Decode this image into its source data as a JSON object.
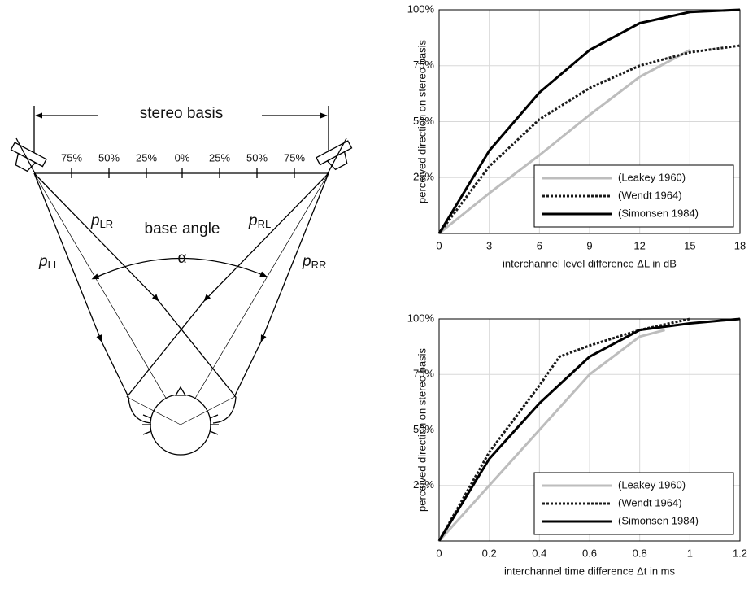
{
  "diagram": {
    "title": "stereo basis",
    "scale_labels": [
      "75%",
      "50%",
      "25%",
      "0%",
      "25%",
      "50%",
      "75%"
    ],
    "angle_label": "base angle",
    "angle_symbol": "α",
    "paths": [
      {
        "symbol": "p",
        "subscript": "LL"
      },
      {
        "symbol": "p",
        "subscript": "LR"
      },
      {
        "symbol": "p",
        "subscript": "RL"
      },
      {
        "symbol": "p",
        "subscript": "RR"
      }
    ]
  },
  "chart_data": [
    {
      "type": "line",
      "xlabel": "interchannel level difference ΔL in dB",
      "ylabel": "perceived direction on stereo basis",
      "xlim": [
        0,
        18
      ],
      "xticks": [
        0,
        3,
        6,
        9,
        12,
        15,
        18
      ],
      "ylim": [
        0,
        100
      ],
      "yticks": [
        {
          "value": 25,
          "label": "25%"
        },
        {
          "value": 50,
          "label": "50%"
        },
        {
          "value": 75,
          "label": "75%"
        },
        {
          "value": 100,
          "label": "100%"
        }
      ],
      "grid": true,
      "legend": "lower right",
      "series": [
        {
          "name": "(Leakey 1960)",
          "color": "#bdbdbd",
          "style": "solid",
          "x": [
            0,
            3,
            6,
            9,
            12,
            15
          ],
          "values": [
            0,
            18,
            35,
            53,
            70,
            82
          ]
        },
        {
          "name": "(Wendt 1964)",
          "color": "#1a1a1a",
          "style": "dotted",
          "x": [
            0,
            3,
            6,
            9,
            12,
            15,
            18
          ],
          "values": [
            0,
            30,
            51,
            65,
            75,
            81,
            84
          ]
        },
        {
          "name": "(Simonsen 1984)",
          "color": "#000000",
          "style": "solid",
          "x": [
            0,
            3,
            6,
            9,
            12,
            15,
            18
          ],
          "values": [
            0,
            37,
            63,
            82,
            94,
            99,
            100
          ]
        }
      ]
    },
    {
      "type": "line",
      "xlabel": "interchannel time difference Δt in ms",
      "ylabel": "perceived direction on stereo basis",
      "xlim": [
        0,
        1.2
      ],
      "xticks": [
        0,
        0.2,
        0.4,
        0.6,
        0.8,
        1,
        1.2
      ],
      "ylim": [
        0,
        100
      ],
      "yticks": [
        {
          "value": 25,
          "label": "25%"
        },
        {
          "value": 50,
          "label": "50%"
        },
        {
          "value": 75,
          "label": "75%"
        },
        {
          "value": 100,
          "label": "100%"
        }
      ],
      "grid": true,
      "legend": "lower right",
      "series": [
        {
          "name": "(Leakey 1960)",
          "color": "#bdbdbd",
          "style": "solid",
          "x": [
            0,
            0.2,
            0.4,
            0.6,
            0.8,
            0.9
          ],
          "values": [
            0,
            25,
            50,
            75,
            92,
            95
          ]
        },
        {
          "name": "(Wendt 1964)",
          "color": "#1a1a1a",
          "style": "dotted",
          "x": [
            0,
            0.2,
            0.4,
            0.48,
            0.6,
            0.8,
            1
          ],
          "values": [
            0,
            40,
            70,
            83,
            88,
            95,
            100
          ]
        },
        {
          "name": "(Simonsen 1984)",
          "color": "#000000",
          "style": "solid",
          "x": [
            0,
            0.2,
            0.4,
            0.6,
            0.8,
            1,
            1.2
          ],
          "values": [
            0,
            37,
            62,
            83,
            95,
            98,
            100
          ]
        }
      ]
    }
  ]
}
